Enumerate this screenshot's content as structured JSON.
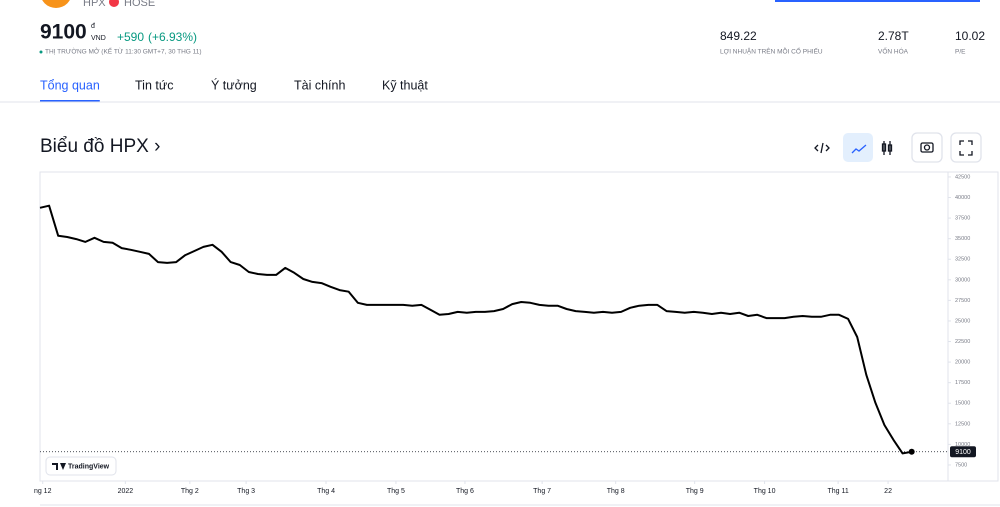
{
  "header": {
    "symbol": "HPX",
    "exchange": "HOSE",
    "price": "9100",
    "currency_mark": "đ",
    "currency": "VND",
    "change": "+590",
    "change_pct": "(+6.93%)",
    "status": "THỊ TRƯỜNG MỞ (KỂ TỪ 11:30 GMT+7, 30 THG 11)"
  },
  "stats": [
    {
      "value": "849.22",
      "label": "LỢI NHUẬN TRÊN MỖI CỔ PHIẾU"
    },
    {
      "value": "2.78T",
      "label": "VỐN HÓA"
    },
    {
      "value": "10.02",
      "label": "P/E"
    }
  ],
  "tabs": {
    "items": [
      "Tổng quan",
      "Tin tức",
      "Ý tưởng",
      "Tài chính",
      "Kỹ thuật"
    ],
    "active": 0
  },
  "chart_title": "Biểu đồ HPX ›",
  "chart_data": {
    "type": "line",
    "color": "#000000",
    "watermark": "TradingView",
    "grid": false,
    "x": [
      0,
      1,
      2,
      3,
      4,
      5,
      6,
      7,
      8,
      9,
      10,
      11,
      12,
      13,
      14,
      15,
      16,
      17,
      18,
      19,
      20,
      21,
      22,
      23,
      24,
      25,
      26,
      27,
      28,
      29,
      30,
      31,
      32,
      33,
      34,
      35,
      36,
      37,
      38,
      39,
      40,
      41,
      42,
      43,
      44,
      45,
      46,
      47,
      48,
      49,
      50,
      51,
      52,
      53,
      54,
      55,
      56,
      57,
      58,
      59,
      60,
      61,
      62,
      63,
      64,
      65,
      66,
      67,
      68,
      69,
      70,
      71,
      72,
      73,
      74,
      75,
      76,
      77,
      78,
      79,
      80,
      81,
      82,
      83,
      84,
      85,
      86,
      87,
      88,
      89,
      90,
      91,
      92,
      93,
      94,
      95,
      96
    ],
    "values": [
      38750,
      39000,
      35350,
      35200,
      34950,
      34600,
      35100,
      34600,
      34500,
      33850,
      33650,
      33400,
      33150,
      32150,
      32050,
      32150,
      33000,
      33500,
      34000,
      34250,
      33400,
      32150,
      31800,
      30950,
      30700,
      30600,
      30600,
      31450,
      30850,
      30100,
      29750,
      29600,
      29150,
      28750,
      28550,
      27200,
      26950,
      26950,
      26950,
      26950,
      26950,
      26850,
      26950,
      26350,
      25750,
      25850,
      26100,
      26000,
      26100,
      26100,
      26200,
      26450,
      27050,
      27300,
      27200,
      26950,
      26850,
      26850,
      26450,
      26200,
      26100,
      26000,
      26100,
      26000,
      26100,
      26600,
      26850,
      26950,
      26950,
      26200,
      26100,
      26000,
      26100,
      26000,
      25850,
      26000,
      25850,
      26000,
      25600,
      25750,
      25350,
      25350,
      25350,
      25500,
      25600,
      25500,
      25500,
      25750,
      25750,
      25250,
      23050,
      18450,
      15050,
      12350,
      10550,
      8900,
      9100
    ],
    "xlim": [
      0,
      100
    ],
    "xticks": [
      {
        "value": 0.3,
        "label": "ng 12"
      },
      {
        "value": 9.4,
        "label": "2022"
      },
      {
        "value": 16.5,
        "label": "Thg 2"
      },
      {
        "value": 22.7,
        "label": "Thg 3"
      },
      {
        "value": 31.5,
        "label": "Thg 4"
      },
      {
        "value": 39.2,
        "label": "Thg 5"
      },
      {
        "value": 46.8,
        "label": "Thg 6"
      },
      {
        "value": 55.3,
        "label": "Thg 7"
      },
      {
        "value": 63.4,
        "label": "Thg 8"
      },
      {
        "value": 72.1,
        "label": "Thg 9"
      },
      {
        "value": 79.8,
        "label": "Thg 10"
      },
      {
        "value": 87.9,
        "label": "Thg 11"
      },
      {
        "value": 93.4,
        "label": "22"
      }
    ],
    "ylim": [
      5550,
      43100
    ],
    "yticks": [
      42500,
      40000,
      37500,
      35000,
      32500,
      30000,
      27500,
      25000,
      22500,
      20000,
      17500,
      15000,
      12500,
      10000,
      7500
    ]
  }
}
